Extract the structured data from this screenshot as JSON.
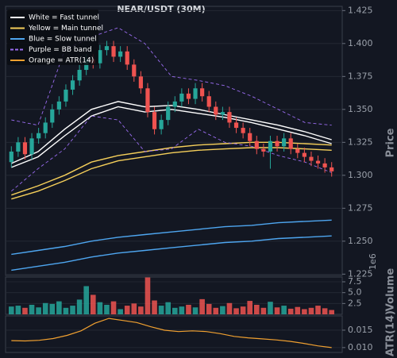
{
  "chart_data": [
    {
      "type": "candlestick",
      "title": "NEAR/USDT (30M)",
      "y_label": "Price",
      "ylim": [
        1.224,
        1.427
      ],
      "yticks": [
        1.225,
        {
          "value": 1.25,
          "label": "1.250"
        },
        1.275,
        {
          "value": 1.3,
          "label": "1.300"
        },
        1.325,
        {
          "value": 1.35,
          "label": "1.350"
        },
        1.375,
        {
          "value": 1.4,
          "label": "1.400"
        },
        1.425
      ],
      "grid": true,
      "up_color": "#26a69a",
      "down_color": "#ef5350",
      "open": [
        1.31,
        1.318,
        1.325,
        1.316,
        1.328,
        1.332,
        1.34,
        1.35,
        1.356,
        1.365,
        1.372,
        1.38,
        1.388,
        1.385,
        1.395,
        1.398,
        1.39,
        1.394,
        1.384,
        1.375,
        1.366,
        1.348,
        1.335,
        1.342,
        1.352,
        1.356,
        1.362,
        1.358,
        1.366,
        1.36,
        1.352,
        1.346,
        1.348,
        1.34,
        1.336,
        1.332,
        1.326,
        1.32,
        1.318,
        1.326,
        1.322,
        1.328,
        1.32,
        1.317,
        1.314,
        1.311,
        1.309,
        1.306
      ],
      "high": [
        1.322,
        1.329,
        1.329,
        1.332,
        1.336,
        1.344,
        1.354,
        1.36,
        1.369,
        1.376,
        1.384,
        1.392,
        1.392,
        1.399,
        1.402,
        1.402,
        1.398,
        1.398,
        1.388,
        1.379,
        1.37,
        1.352,
        1.346,
        1.356,
        1.36,
        1.366,
        1.366,
        1.37,
        1.37,
        1.364,
        1.356,
        1.352,
        1.352,
        1.344,
        1.34,
        1.336,
        1.33,
        1.324,
        1.33,
        1.33,
        1.332,
        1.332,
        1.324,
        1.321,
        1.318,
        1.315,
        1.313,
        1.31
      ],
      "low": [
        1.306,
        1.314,
        1.312,
        1.312,
        1.324,
        1.328,
        1.336,
        1.346,
        1.352,
        1.361,
        1.368,
        1.376,
        1.381,
        1.381,
        1.391,
        1.386,
        1.386,
        1.38,
        1.371,
        1.362,
        1.344,
        1.331,
        1.331,
        1.338,
        1.348,
        1.352,
        1.354,
        1.354,
        1.356,
        1.348,
        1.342,
        1.342,
        1.336,
        1.332,
        1.328,
        1.322,
        1.316,
        1.314,
        1.305,
        1.318,
        1.318,
        1.316,
        1.313,
        1.31,
        1.307,
        1.305,
        1.302,
        1.299
      ],
      "close": [
        1.318,
        1.325,
        1.316,
        1.328,
        1.332,
        1.34,
        1.35,
        1.356,
        1.365,
        1.372,
        1.38,
        1.388,
        1.385,
        1.395,
        1.398,
        1.39,
        1.394,
        1.384,
        1.375,
        1.366,
        1.348,
        1.335,
        1.342,
        1.352,
        1.356,
        1.362,
        1.358,
        1.366,
        1.36,
        1.352,
        1.346,
        1.348,
        1.34,
        1.336,
        1.332,
        1.326,
        1.32,
        1.318,
        1.326,
        1.322,
        1.328,
        1.32,
        1.317,
        1.314,
        1.311,
        1.309,
        1.306,
        1.303
      ],
      "series": [
        {
          "name": "White = Fast tunnel",
          "color": "#ffffff",
          "dash": false,
          "upper": [
            1.309,
            1.318,
            1.335,
            1.35,
            1.356,
            1.352,
            1.353,
            1.35,
            1.346,
            1.342,
            1.338,
            1.333,
            1.327
          ],
          "lower": [
            1.306,
            1.314,
            1.33,
            1.345,
            1.352,
            1.348,
            1.35,
            1.347,
            1.344,
            1.34,
            1.335,
            1.33,
            1.324
          ]
        },
        {
          "name": "Yellow = Main tunnel",
          "color": "#f5cf5a",
          "dash": false,
          "upper": [
            1.285,
            1.292,
            1.3,
            1.31,
            1.315,
            1.318,
            1.321,
            1.323,
            1.324,
            1.325,
            1.325,
            1.324,
            1.323
          ],
          "lower": [
            1.282,
            1.288,
            1.296,
            1.305,
            1.311,
            1.314,
            1.317,
            1.319,
            1.32,
            1.321,
            1.321,
            1.32,
            1.319
          ]
        },
        {
          "name": "Blue = Slow tunnel",
          "color": "#4ea6f0",
          "dash": false,
          "upper": [
            1.24,
            1.243,
            1.246,
            1.25,
            1.253,
            1.255,
            1.257,
            1.259,
            1.261,
            1.262,
            1.264,
            1.265,
            1.266
          ],
          "lower": [
            1.228,
            1.231,
            1.234,
            1.238,
            1.241,
            1.243,
            1.245,
            1.247,
            1.249,
            1.25,
            1.252,
            1.253,
            1.254
          ]
        },
        {
          "name": "Purple = BB band",
          "color": "#9a6cf0",
          "dash": true,
          "upper": [
            1.342,
            1.338,
            1.395,
            1.405,
            1.412,
            1.4,
            1.375,
            1.372,
            1.368,
            1.36,
            1.35,
            1.34,
            1.338
          ],
          "lower": [
            1.288,
            1.305,
            1.32,
            1.345,
            1.342,
            1.318,
            1.32,
            1.335,
            1.325,
            1.322,
            1.315,
            1.31,
            1.302
          ]
        }
      ],
      "legend_extra": {
        "name": "Orange = ATR(14)",
        "color": "#f0a030"
      }
    },
    {
      "type": "bar",
      "y_label": "Volume",
      "exponent_label": "1e6",
      "ylim": [
        0,
        8.6
      ],
      "yticks": [
        2.5,
        {
          "value": 5,
          "label": "5.0"
        },
        7.5
      ],
      "grid": true,
      "values": [
        1.8,
        2.0,
        1.5,
        2.2,
        1.6,
        2.6,
        2.4,
        3.0,
        1.5,
        2.0,
        3.4,
        6.5,
        4.5,
        2.8,
        2.2,
        3.0,
        1.2,
        2.0,
        2.5,
        1.8,
        8.5,
        3.2,
        2.0,
        2.8,
        1.5,
        1.8,
        2.2,
        1.6,
        3.5,
        2.4,
        1.5,
        1.9,
        2.6,
        1.4,
        1.8,
        3.1,
        2.2,
        1.5,
        2.9,
        1.6,
        2.0,
        1.3,
        1.7,
        1.2,
        1.5,
        2.0,
        1.4,
        1.0
      ]
    },
    {
      "type": "line",
      "y_label": "ATR(14)",
      "color": "#f0a030",
      "ylim": [
        0.0086,
        0.0191
      ],
      "yticks": [
        {
          "value": 0.01,
          "label": "0.010"
        },
        {
          "value": 0.015,
          "label": "0.015"
        }
      ],
      "grid": true,
      "values": [
        0.012,
        0.0119,
        0.0121,
        0.0126,
        0.0135,
        0.0148,
        0.017,
        0.0184,
        0.0178,
        0.0172,
        0.016,
        0.015,
        0.0146,
        0.0148,
        0.0146,
        0.014,
        0.0132,
        0.0128,
        0.0125,
        0.0122,
        0.0118,
        0.0112,
        0.0105,
        0.01
      ]
    }
  ]
}
